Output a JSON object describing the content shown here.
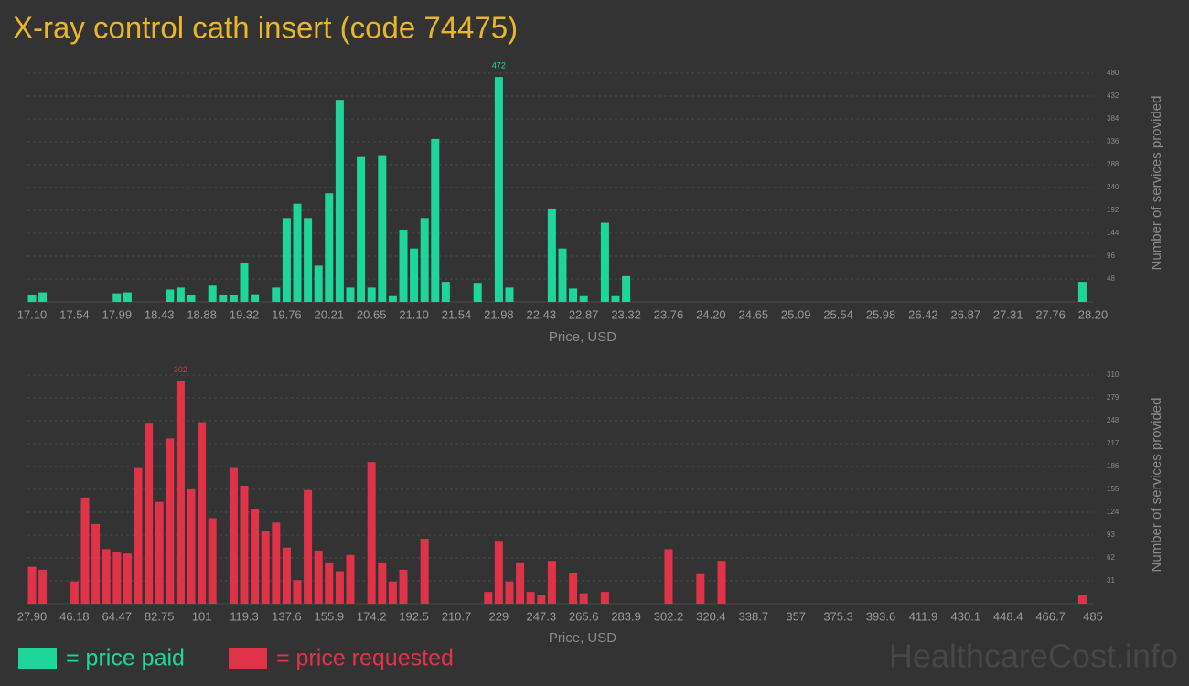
{
  "title": "X-ray control cath insert (code 74475)",
  "watermark": "HealthcareCost.info",
  "chart_data": [
    {
      "type": "bar",
      "x_label": "Price, USD",
      "y_label": "Number of services provided",
      "grid": true,
      "ylim": [
        0,
        480
      ],
      "yticks": [
        48,
        96,
        144,
        192,
        240,
        288,
        336,
        384,
        432,
        480
      ],
      "categories": [
        "17.10",
        null,
        null,
        null,
        "17.54",
        null,
        null,
        null,
        "17.99",
        null,
        null,
        null,
        "18.43",
        null,
        null,
        null,
        "18.88",
        null,
        null,
        null,
        "19.32",
        null,
        null,
        null,
        "19.76",
        null,
        null,
        null,
        "20.21",
        null,
        null,
        null,
        "20.65",
        null,
        null,
        null,
        "21.10",
        null,
        null,
        null,
        "21.54",
        null,
        null,
        null,
        "21.98",
        null,
        null,
        null,
        "22.43",
        null,
        null,
        null,
        "22.87",
        null,
        null,
        null,
        "23.32",
        null,
        null,
        null,
        "23.76",
        null,
        null,
        null,
        "24.20",
        null,
        null,
        null,
        "24.65",
        null,
        null,
        null,
        "25.09",
        null,
        null,
        null,
        "25.54",
        null,
        null,
        null,
        "25.98",
        null,
        null,
        null,
        "26.42",
        null,
        null,
        null,
        "26.87",
        null,
        null,
        null,
        "27.31",
        null,
        null,
        null,
        "27.76",
        null,
        null,
        null,
        "28.20"
      ],
      "series": [
        {
          "name": "= price paid",
          "color": "#1fd69a",
          "values": [
            14,
            20,
            0,
            0,
            0,
            0,
            0,
            0,
            18,
            20,
            0,
            0,
            0,
            26,
            30,
            14,
            0,
            34,
            14,
            14,
            82,
            16,
            0,
            30,
            176,
            206,
            176,
            76,
            228,
            424,
            30,
            304,
            30,
            306,
            12,
            150,
            112,
            176,
            342,
            42,
            0,
            0,
            40,
            0,
            472,
            30,
            0,
            0,
            0,
            196,
            112,
            28,
            12,
            0,
            166,
            12,
            54,
            0,
            0,
            0,
            0,
            0,
            0,
            0,
            0,
            0,
            0,
            0,
            0,
            0,
            0,
            0,
            0,
            0,
            0,
            0,
            0,
            0,
            0,
            0,
            0,
            0,
            0,
            0,
            0,
            0,
            0,
            0,
            0,
            0,
            0,
            0,
            0,
            0,
            0,
            0,
            0,
            0,
            0,
            42,
            0
          ]
        }
      ]
    },
    {
      "type": "bar",
      "x_label": "Price, USD",
      "y_label": "Number of services provided",
      "grid": true,
      "ylim": [
        0,
        310
      ],
      "yticks": [
        31,
        62,
        93,
        124,
        155,
        186,
        217,
        248,
        279,
        310
      ],
      "categories": [
        "27.90",
        null,
        null,
        null,
        "46.18",
        null,
        null,
        null,
        "64.47",
        null,
        null,
        null,
        "82.75",
        null,
        null,
        null,
        "101",
        null,
        null,
        null,
        "119.3",
        null,
        null,
        null,
        "137.6",
        null,
        null,
        null,
        "155.9",
        null,
        null,
        null,
        "174.2",
        null,
        null,
        null,
        "192.5",
        null,
        null,
        null,
        "210.7",
        null,
        null,
        null,
        "229",
        null,
        null,
        null,
        "247.3",
        null,
        null,
        null,
        "265.6",
        null,
        null,
        null,
        "283.9",
        null,
        null,
        null,
        "302.2",
        null,
        null,
        null,
        "320.4",
        null,
        null,
        null,
        "338.7",
        null,
        null,
        null,
        "357",
        null,
        null,
        null,
        "375.3",
        null,
        null,
        null,
        "393.6",
        null,
        null,
        null,
        "411.9",
        null,
        null,
        null,
        "430.1",
        null,
        null,
        null,
        "448.4",
        null,
        null,
        null,
        "466.7",
        null,
        null,
        null,
        "485"
      ],
      "series": [
        {
          "name": "= price requested",
          "color": "#e0334a",
          "values": [
            50,
            46,
            0,
            0,
            30,
            144,
            108,
            74,
            70,
            68,
            184,
            244,
            138,
            224,
            302,
            155,
            246,
            116,
            0,
            184,
            160,
            128,
            98,
            110,
            76,
            32,
            154,
            72,
            56,
            44,
            66,
            0,
            192,
            56,
            30,
            46,
            0,
            88,
            0,
            0,
            0,
            0,
            0,
            16,
            84,
            30,
            56,
            16,
            12,
            58,
            0,
            42,
            14,
            0,
            16,
            0,
            0,
            0,
            0,
            0,
            74,
            0,
            0,
            40,
            0,
            58,
            0,
            0,
            0,
            0,
            0,
            0,
            0,
            0,
            0,
            0,
            0,
            0,
            0,
            0,
            0,
            0,
            0,
            0,
            0,
            0,
            0,
            0,
            0,
            0,
            0,
            0,
            0,
            0,
            0,
            0,
            0,
            0,
            0,
            12,
            0
          ]
        }
      ]
    }
  ]
}
